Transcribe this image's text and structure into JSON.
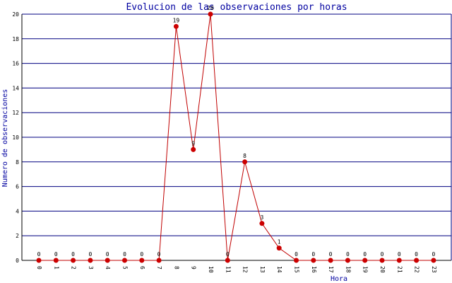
{
  "chart_data": {
    "type": "line",
    "title": "Evolucion de las observaciones por horas",
    "xlabel": "Hora",
    "ylabel": "Numero de observaciones",
    "categories": [
      "0",
      "1",
      "2",
      "3",
      "4",
      "5",
      "6",
      "7",
      "8",
      "9",
      "10",
      "11",
      "12",
      "13",
      "14",
      "15",
      "16",
      "17",
      "18",
      "19",
      "20",
      "21",
      "22",
      "23"
    ],
    "series": [
      {
        "values": [
          0,
          0,
          0,
          0,
          0,
          0,
          0,
          0,
          19,
          9,
          20,
          0,
          8,
          3,
          1,
          0,
          0,
          0,
          0,
          0,
          0,
          0,
          0,
          0
        ]
      }
    ],
    "data_labels": [
      "0",
      "0",
      "0",
      "0",
      "0",
      "0",
      "0",
      "0",
      "19",
      "9",
      "20",
      "0",
      "8",
      "3",
      "1",
      "0",
      "0",
      "0",
      "0",
      "0",
      "0",
      "0",
      "0",
      "0"
    ],
    "ylim": [
      0,
      20
    ],
    "yticks": [
      0,
      2,
      4,
      6,
      8,
      10,
      12,
      14,
      16,
      18,
      20
    ],
    "grid": true,
    "colors": {
      "line": "#c00000",
      "point": "#cc0000",
      "grid": "#000080",
      "text": "#0000a0"
    }
  }
}
